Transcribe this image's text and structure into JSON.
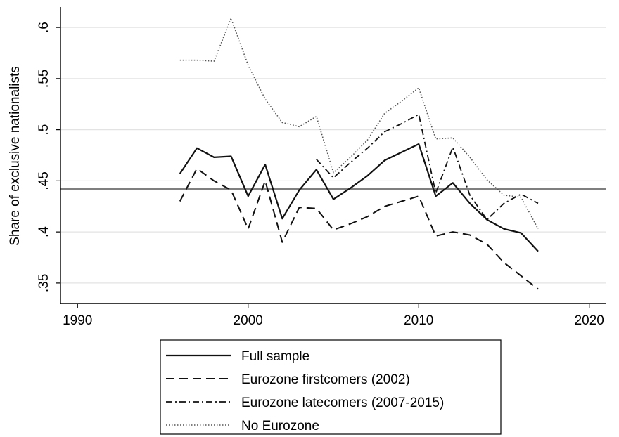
{
  "chart_data": {
    "type": "line",
    "xlabel": "",
    "ylabel": "Share of exclusive nationalists",
    "xlim": [
      1989,
      2021
    ],
    "ylim": [
      0.33,
      0.62
    ],
    "xticks": [
      1990,
      2000,
      2010,
      2020
    ],
    "xtick_labels": [
      "1990",
      "2000",
      "2010",
      "2020"
    ],
    "yticks": [
      0.35,
      0.4,
      0.45,
      0.5,
      0.55,
      0.6
    ],
    "ytick_labels": [
      ".35",
      ".4",
      ".45",
      ".5",
      ".55",
      ".6"
    ],
    "grid": true,
    "legend_position": "bottom",
    "reference_line": 0.442,
    "x": [
      1996,
      1997,
      1998,
      1999,
      2000,
      2001,
      2002,
      2003,
      2004,
      2005,
      2006,
      2007,
      2008,
      2009,
      2010,
      2011,
      2012,
      2013,
      2014,
      2015,
      2016,
      2017
    ],
    "series": [
      {
        "name": "Full sample",
        "style": "solid",
        "values": [
          0.457,
          0.482,
          0.473,
          0.474,
          0.435,
          0.466,
          0.413,
          0.441,
          0.461,
          0.432,
          0.443,
          0.455,
          0.47,
          0.478,
          0.486,
          0.435,
          0.448,
          0.428,
          0.412,
          0.403,
          0.399,
          0.381
        ]
      },
      {
        "name": "Eurozone firstcomers (2002)",
        "style": "dashed",
        "values": [
          0.43,
          0.462,
          0.45,
          0.441,
          0.403,
          0.45,
          0.39,
          0.424,
          0.423,
          0.402,
          0.408,
          0.415,
          0.425,
          0.43,
          0.435,
          0.396,
          0.4,
          0.397,
          0.388,
          0.37,
          0.357,
          0.344
        ]
      },
      {
        "name": "Eurozone latecomers (2007-2015)",
        "style": "dashdot",
        "values": [
          null,
          null,
          null,
          null,
          null,
          null,
          null,
          null,
          0.471,
          0.453,
          0.468,
          0.482,
          0.498,
          0.506,
          0.515,
          0.438,
          0.483,
          0.436,
          0.412,
          0.428,
          0.437,
          0.428
        ]
      },
      {
        "name": "No Eurozone",
        "style": "dotted",
        "values": [
          0.568,
          0.568,
          0.567,
          0.609,
          0.563,
          0.53,
          0.507,
          0.503,
          0.513,
          0.458,
          0.473,
          0.49,
          0.516,
          0.528,
          0.541,
          0.491,
          0.492,
          0.473,
          0.451,
          0.436,
          0.434,
          0.403
        ]
      }
    ]
  }
}
